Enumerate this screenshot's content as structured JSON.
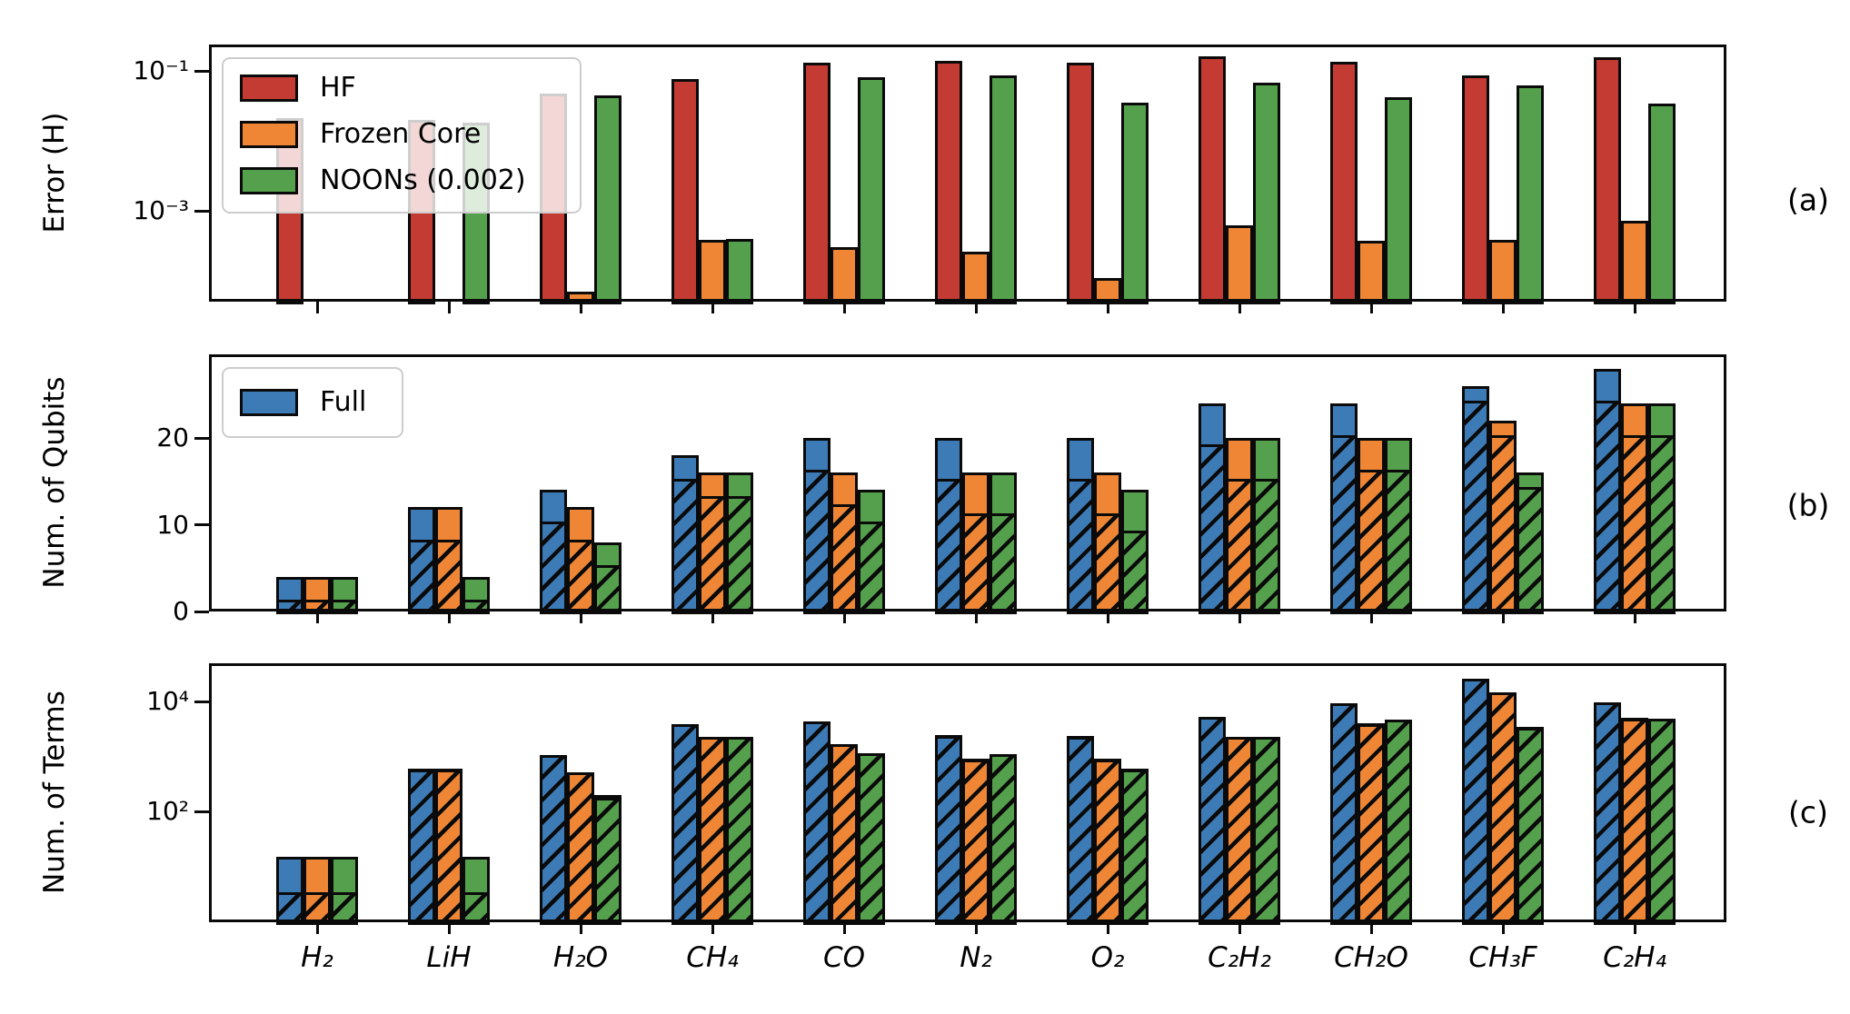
{
  "figure": {
    "background": "#ffffff",
    "panel_labels": [
      "(a)",
      "(b)",
      "(c)"
    ],
    "categories": [
      "H₂",
      "LiH",
      "H₂O",
      "CH₄",
      "CO",
      "N₂",
      "O₂",
      "C₂H₂",
      "CH₂O",
      "CH₃F",
      "C₂H₄"
    ],
    "colors": {
      "hf": "#c33b32",
      "frozen_core": "#ee8635",
      "noons": "#55a04c",
      "full": "#3d7bb7",
      "edge": "#0a0a0a",
      "legend_border": "#cccccc"
    }
  },
  "chart_data": [
    {
      "id": "a",
      "type": "bar",
      "yscale": "log",
      "ylabel": "Error (H)",
      "ylim": [
        5e-05,
        0.24
      ],
      "yticks": [
        {
          "label": "10⁻¹",
          "value": 0.1
        },
        {
          "label": "10⁻³",
          "value": 0.001
        }
      ],
      "grid": false,
      "legend_position": "upper-left",
      "legend": [
        {
          "label": "HF",
          "color_key": "hf"
        },
        {
          "label": "Frozen Core",
          "color_key": "frozen_core"
        },
        {
          "label": "NOONs (0.002)",
          "color_key": "noons"
        }
      ],
      "series": [
        {
          "name": "HF",
          "color_key": "hf",
          "values": [
            0.021,
            0.02,
            0.047,
            0.077,
            0.13,
            0.14,
            0.13,
            0.16,
            0.135,
            0.086,
            0.155
          ]
        },
        {
          "name": "Frozen Core",
          "color_key": "frozen_core",
          "values": [
            null,
            null,
            7e-05,
            0.00038,
            0.0003,
            0.00026,
            0.00011,
            0.00062,
            0.00037,
            0.00038,
            0.00072
          ]
        },
        {
          "name": "NOONs (0.002)",
          "color_key": "noons",
          "values": [
            null,
            0.018,
            0.044,
            0.00039,
            0.081,
            0.087,
            0.035,
            0.068,
            0.042,
            0.062,
            0.034
          ]
        }
      ]
    },
    {
      "id": "b",
      "type": "bar",
      "yscale": "linear",
      "ylabel": "Num. of Qubits",
      "ylim": [
        0,
        29.6
      ],
      "yticks": [
        {
          "label": "0",
          "value": 0
        },
        {
          "label": "10",
          "value": 10
        },
        {
          "label": "20",
          "value": 20
        }
      ],
      "grid": false,
      "legend_position": "upper-left",
      "legend": [
        {
          "label": "Full",
          "color_key": "full"
        }
      ],
      "hatch_meaning": "hatched lower portion of each bar",
      "series": [
        {
          "name": "Full",
          "color_key": "full",
          "values": [
            4,
            12,
            14,
            18,
            20,
            20,
            20,
            24,
            24,
            26,
            28
          ],
          "hatched": [
            1,
            8,
            10,
            15,
            16,
            15,
            15,
            19,
            20,
            24,
            24
          ]
        },
        {
          "name": "Frozen Core",
          "color_key": "frozen_core",
          "values": [
            4,
            12,
            12,
            16,
            16,
            16,
            16,
            20,
            20,
            22,
            24
          ],
          "hatched": [
            1,
            8,
            8,
            13,
            12,
            11,
            11,
            15,
            16,
            20,
            20
          ]
        },
        {
          "name": "NOONs (0.002)",
          "color_key": "noons",
          "values": [
            4,
            4,
            8,
            16,
            14,
            16,
            14,
            20,
            20,
            16,
            24
          ],
          "hatched": [
            1,
            1,
            5,
            13,
            10,
            11,
            9,
            15,
            16,
            14,
            20
          ]
        }
      ]
    },
    {
      "id": "c",
      "type": "bar",
      "yscale": "log",
      "ylabel": "Num. of Terms",
      "ylim": [
        1,
        50000
      ],
      "yticks": [
        {
          "label": "10⁴",
          "value": 10000
        },
        {
          "label": "10²",
          "value": 100
        }
      ],
      "grid": false,
      "legend": [],
      "series": [
        {
          "name": "Full",
          "color_key": "full",
          "values": [
            15,
            600,
            1050,
            3900,
            4400,
            2400,
            2350,
            5300,
            9200,
            26000,
            9800
          ],
          "hatched": [
            3,
            520,
            940,
            3500,
            3900,
            2100,
            2050,
            4700,
            8200,
            23000,
            8700
          ]
        },
        {
          "name": "Frozen Core",
          "color_key": "frozen_core",
          "values": [
            15,
            600,
            520,
            2300,
            1700,
            900,
            900,
            2300,
            4000,
            14500,
            5000
          ],
          "hatched": [
            3,
            520,
            460,
            2050,
            1500,
            790,
            790,
            2000,
            3500,
            13000,
            4400
          ]
        },
        {
          "name": "NOONs (0.002)",
          "color_key": "noons",
          "values": [
            15,
            15,
            200,
            2300,
            1150,
            1100,
            600,
            2300,
            4600,
            3400,
            4900
          ],
          "hatched": [
            3,
            3,
            160,
            2050,
            1000,
            970,
            520,
            2000,
            4100,
            3000,
            4300
          ]
        }
      ]
    }
  ]
}
